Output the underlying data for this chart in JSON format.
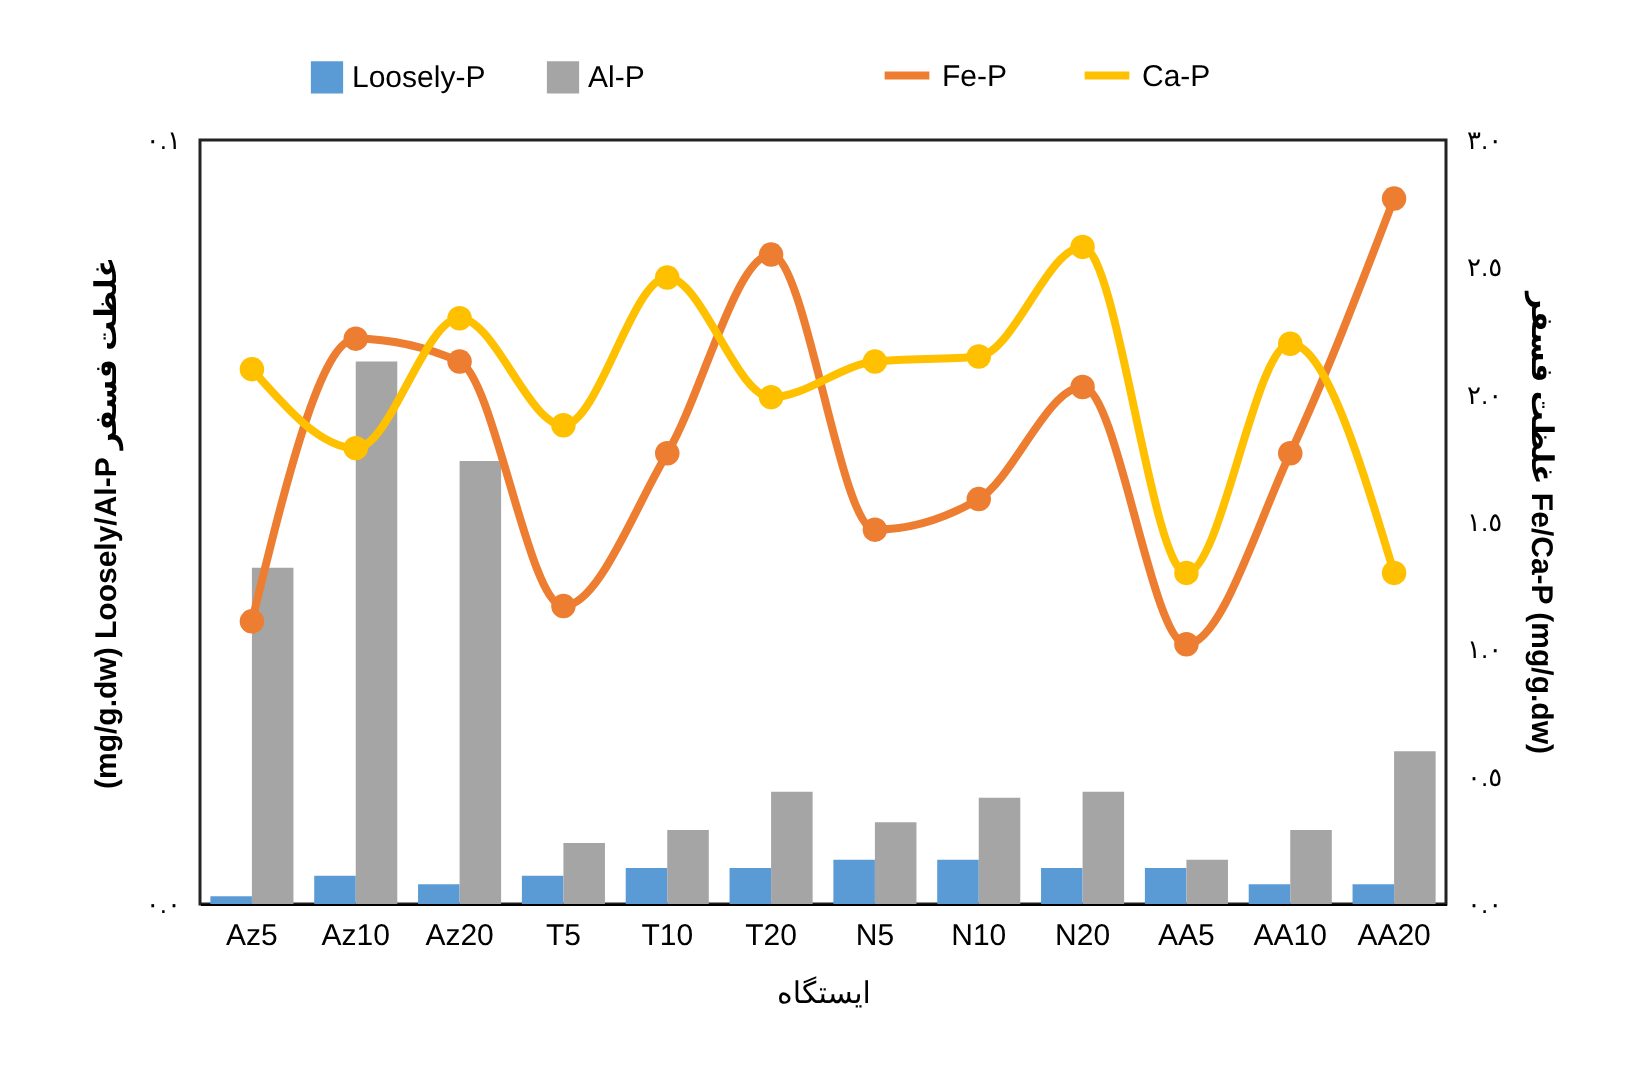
{
  "chart_data": {
    "type": "bar",
    "xlabel": "ایستگاه",
    "ylabel": "(mg/g.dw) Loosely/Al-P غلظت فسفر",
    "y2label": "غلظت فسفر Fe/Ca-P (mg/g.dw)",
    "categories": [
      "Az5",
      "Az10",
      "Az20",
      "T5",
      "T10",
      "T20",
      "N5",
      "N10",
      "N20",
      "AA5",
      "AA10",
      "AA20"
    ],
    "series": [
      {
        "name": "Loosely-P",
        "color": "#5b9bd5",
        "values": [
          0.001,
          0.0037,
          0.0026,
          0.0037,
          0.0047,
          0.0047,
          0.0058,
          0.0058,
          0.0047,
          0.0047,
          0.0026,
          0.0026
        ]
      },
      {
        "name": "Al-P",
        "color": "#a5a5a5",
        "values": [
          0.044,
          0.071,
          0.058,
          0.008,
          0.0097,
          0.0147,
          0.0107,
          0.0139,
          0.0147,
          0.0058,
          0.0097,
          0.02
        ]
      },
      {
        "name": "Fe-P",
        "type": "line",
        "axis": "y2",
        "color": "#ed7d31",
        "values": [
          1.11,
          2.22,
          2.13,
          1.17,
          1.77,
          2.55,
          1.47,
          1.59,
          2.03,
          1.02,
          1.77,
          2.77
        ]
      },
      {
        "name": "Ca-P",
        "type": "line",
        "axis": "y2",
        "color": "#ffc000",
        "values": [
          2.1,
          1.79,
          2.3,
          1.88,
          2.46,
          1.99,
          2.13,
          2.15,
          2.58,
          1.3,
          2.2,
          1.3
        ]
      }
    ],
    "ylim": [
      0,
      0.1
    ],
    "yticks": [
      {
        "value": 0,
        "label": "٠.٠"
      },
      {
        "value": 0.1,
        "label": "٠.١"
      }
    ],
    "y2lim": [
      0,
      3
    ],
    "y2ticks": [
      {
        "value": 0,
        "label": "٠.٠"
      },
      {
        "value": 0.5,
        "label": "٠.٥"
      },
      {
        "value": 1,
        "label": "١.٠"
      },
      {
        "value": 1.5,
        "label": "١.٥"
      },
      {
        "value": 2,
        "label": "٢.٠"
      },
      {
        "value": 2.5,
        "label": "٢.٥"
      },
      {
        "value": 3,
        "label": "٣.٠"
      }
    ],
    "legend": "top",
    "marker": "circle",
    "line_style": "solid"
  }
}
